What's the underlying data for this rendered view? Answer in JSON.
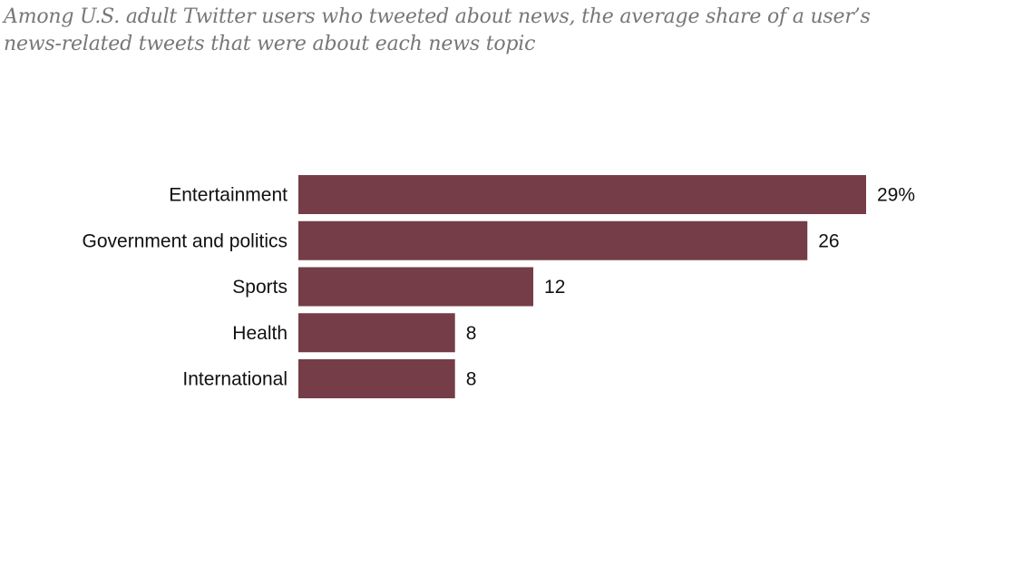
{
  "chart_data": {
    "type": "bar",
    "orientation": "horizontal",
    "title": "",
    "subtitle_lines": [
      "Among U.S. adult Twitter users who tweeted about news, the average share of a user’s",
      "news-related tweets that were about each news topic"
    ],
    "categories": [
      "Entertainment",
      "Government and politics",
      "Sports",
      "Health",
      "International"
    ],
    "values": [
      29,
      26,
      12,
      8,
      8
    ],
    "value_labels": [
      "29%",
      "26",
      "12",
      "8",
      "8"
    ],
    "xlabel": "",
    "ylabel": "",
    "xlim": [
      0,
      29
    ],
    "grid": false,
    "bar_color": "#743d47"
  }
}
